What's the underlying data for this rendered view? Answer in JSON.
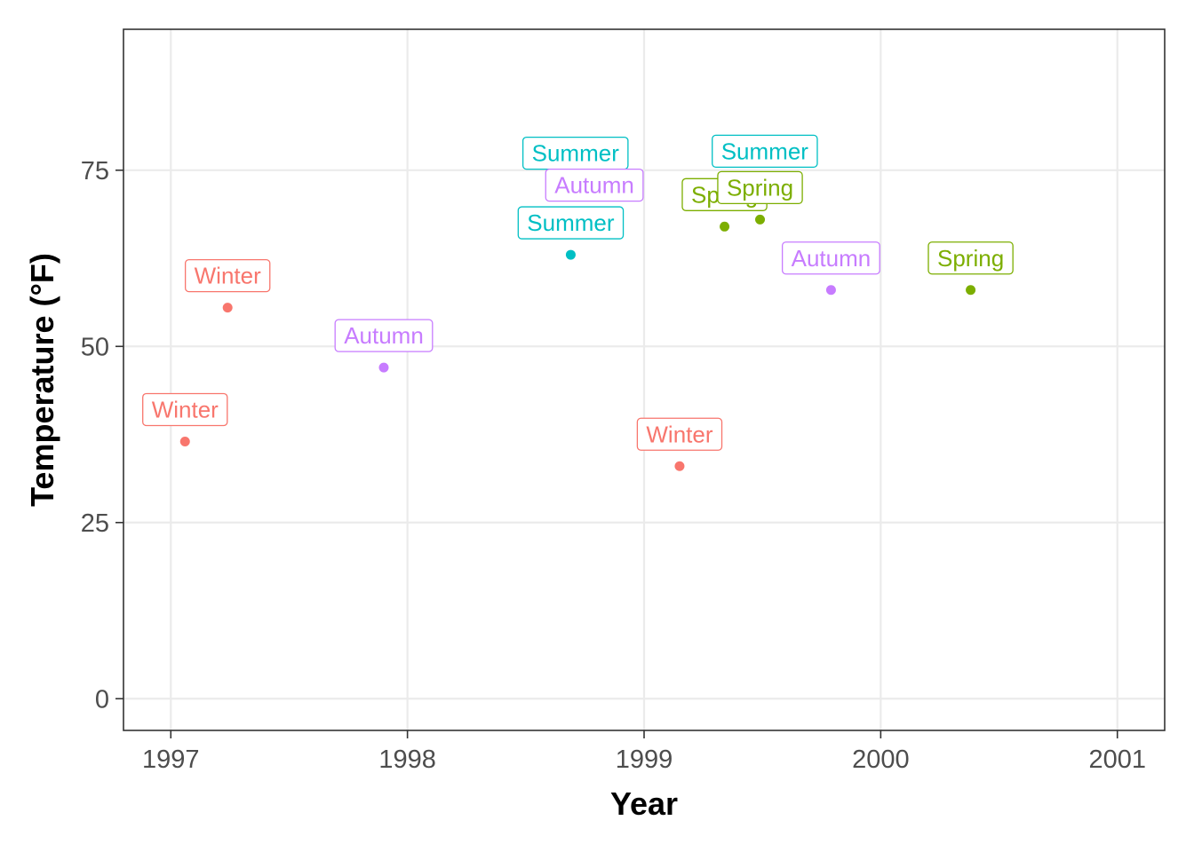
{
  "chart_data": {
    "type": "scatter",
    "title": "",
    "xlabel": "Year",
    "ylabel": "Temperature (°F)",
    "xlim": [
      1996.8,
      2001.2
    ],
    "ylim": [
      -4.5,
      95
    ],
    "x_ticks": [
      1997,
      1998,
      1999,
      2000,
      2001
    ],
    "y_ticks": [
      0,
      25,
      50,
      75
    ],
    "grid": true,
    "legend": "none",
    "season_colors": {
      "Winter": "#f8766d",
      "Spring": "#7cae00",
      "Summer": "#00bfc4",
      "Autumn": "#c77cff"
    },
    "points": [
      {
        "x": 1997.06,
        "y": 36.5,
        "season": "Winter"
      },
      {
        "x": 1997.24,
        "y": 55.5,
        "season": "Winter"
      },
      {
        "x": 1997.9,
        "y": 47,
        "season": "Autumn"
      },
      {
        "x": 1998.69,
        "y": 63,
        "season": "Summer"
      },
      {
        "x": 1999.15,
        "y": 33,
        "season": "Winter"
      },
      {
        "x": 1999.34,
        "y": 67,
        "season": "Spring"
      },
      {
        "x": 1999.49,
        "y": 68,
        "season": "Spring"
      },
      {
        "x": 1999.79,
        "y": 58,
        "season": "Autumn"
      },
      {
        "x": 2000.38,
        "y": 58,
        "season": "Spring"
      }
    ],
    "labels": [
      {
        "x": 1997.06,
        "y": 36.5,
        "text": "Winter",
        "season": "Winter",
        "dy": 1
      },
      {
        "x": 1997.24,
        "y": 55.5,
        "text": "Winter",
        "season": "Winter",
        "dy": 1
      },
      {
        "x": 1997.9,
        "y": 47,
        "text": "Autumn",
        "season": "Autumn",
        "dy": 1
      },
      {
        "x": 1998.69,
        "y": 63,
        "text": "Summer",
        "season": "Summer",
        "dy": 1
      },
      {
        "x": 1998.71,
        "y": 63,
        "text": "Summer",
        "season": "Summer",
        "dy": 3.18
      },
      {
        "x": 1998.79,
        "y": 63,
        "text": "Autumn",
        "season": "Autumn",
        "dy": 2.18
      },
      {
        "x": 1999.15,
        "y": 33,
        "text": "Winter",
        "season": "Winter",
        "dy": 1
      },
      {
        "x": 1999.34,
        "y": 67,
        "text": "Spring",
        "season": "Spring",
        "dy": 1
      },
      {
        "x": 1999.51,
        "y": 67,
        "text": "Summer",
        "season": "Summer",
        "dy": 2.36
      },
      {
        "x": 1999.49,
        "y": 68,
        "text": "Spring",
        "season": "Spring",
        "dy": 1
      },
      {
        "x": 1999.79,
        "y": 58,
        "text": "Autumn",
        "season": "Autumn",
        "dy": 1
      },
      {
        "x": 2000.38,
        "y": 58,
        "text": "Spring",
        "season": "Spring",
        "dy": 1
      }
    ]
  }
}
